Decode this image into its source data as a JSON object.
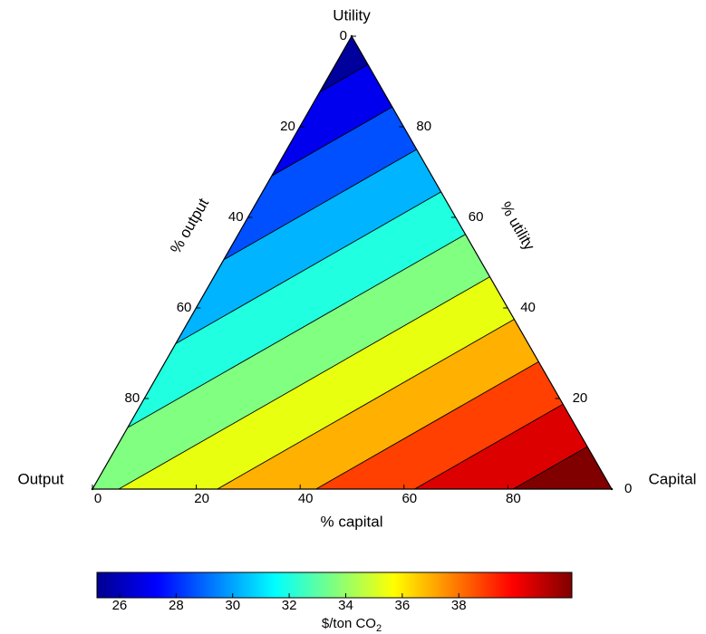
{
  "chart_data": {
    "type": "ternary-contour",
    "corners": [
      {
        "label": "Utility",
        "value": 26
      },
      {
        "label": "Output",
        "value": 34.1
      },
      {
        "label": "Capital",
        "value": 42
      }
    ],
    "axes": {
      "capital": {
        "label": "% capital",
        "ticks": [
          0,
          20,
          40,
          60,
          80
        ]
      },
      "utility": {
        "label": "% utility",
        "ticks": [
          0,
          20,
          40,
          60,
          80
        ]
      },
      "output": {
        "label": "% output",
        "ticks": [
          0,
          20,
          40,
          60,
          80
        ]
      }
    },
    "levels": [
      27,
      28.5,
      30,
      31.5,
      33,
      34.5,
      36,
      37.5,
      39,
      40.5
    ],
    "band_colors": [
      "#00009c",
      "#0000ee",
      "#0050ff",
      "#00b4ff",
      "#20ffdf",
      "#80ff80",
      "#e8ff10",
      "#ffb000",
      "#ff4000",
      "#dd0000",
      "#800000"
    ],
    "line_color": "#000000",
    "colorbar": {
      "label": "$/ton CO",
      "label_sub": "2",
      "lim": [
        25.2,
        42.0
      ],
      "ticks": [
        26,
        28,
        30,
        32,
        34,
        36,
        38
      ]
    }
  }
}
